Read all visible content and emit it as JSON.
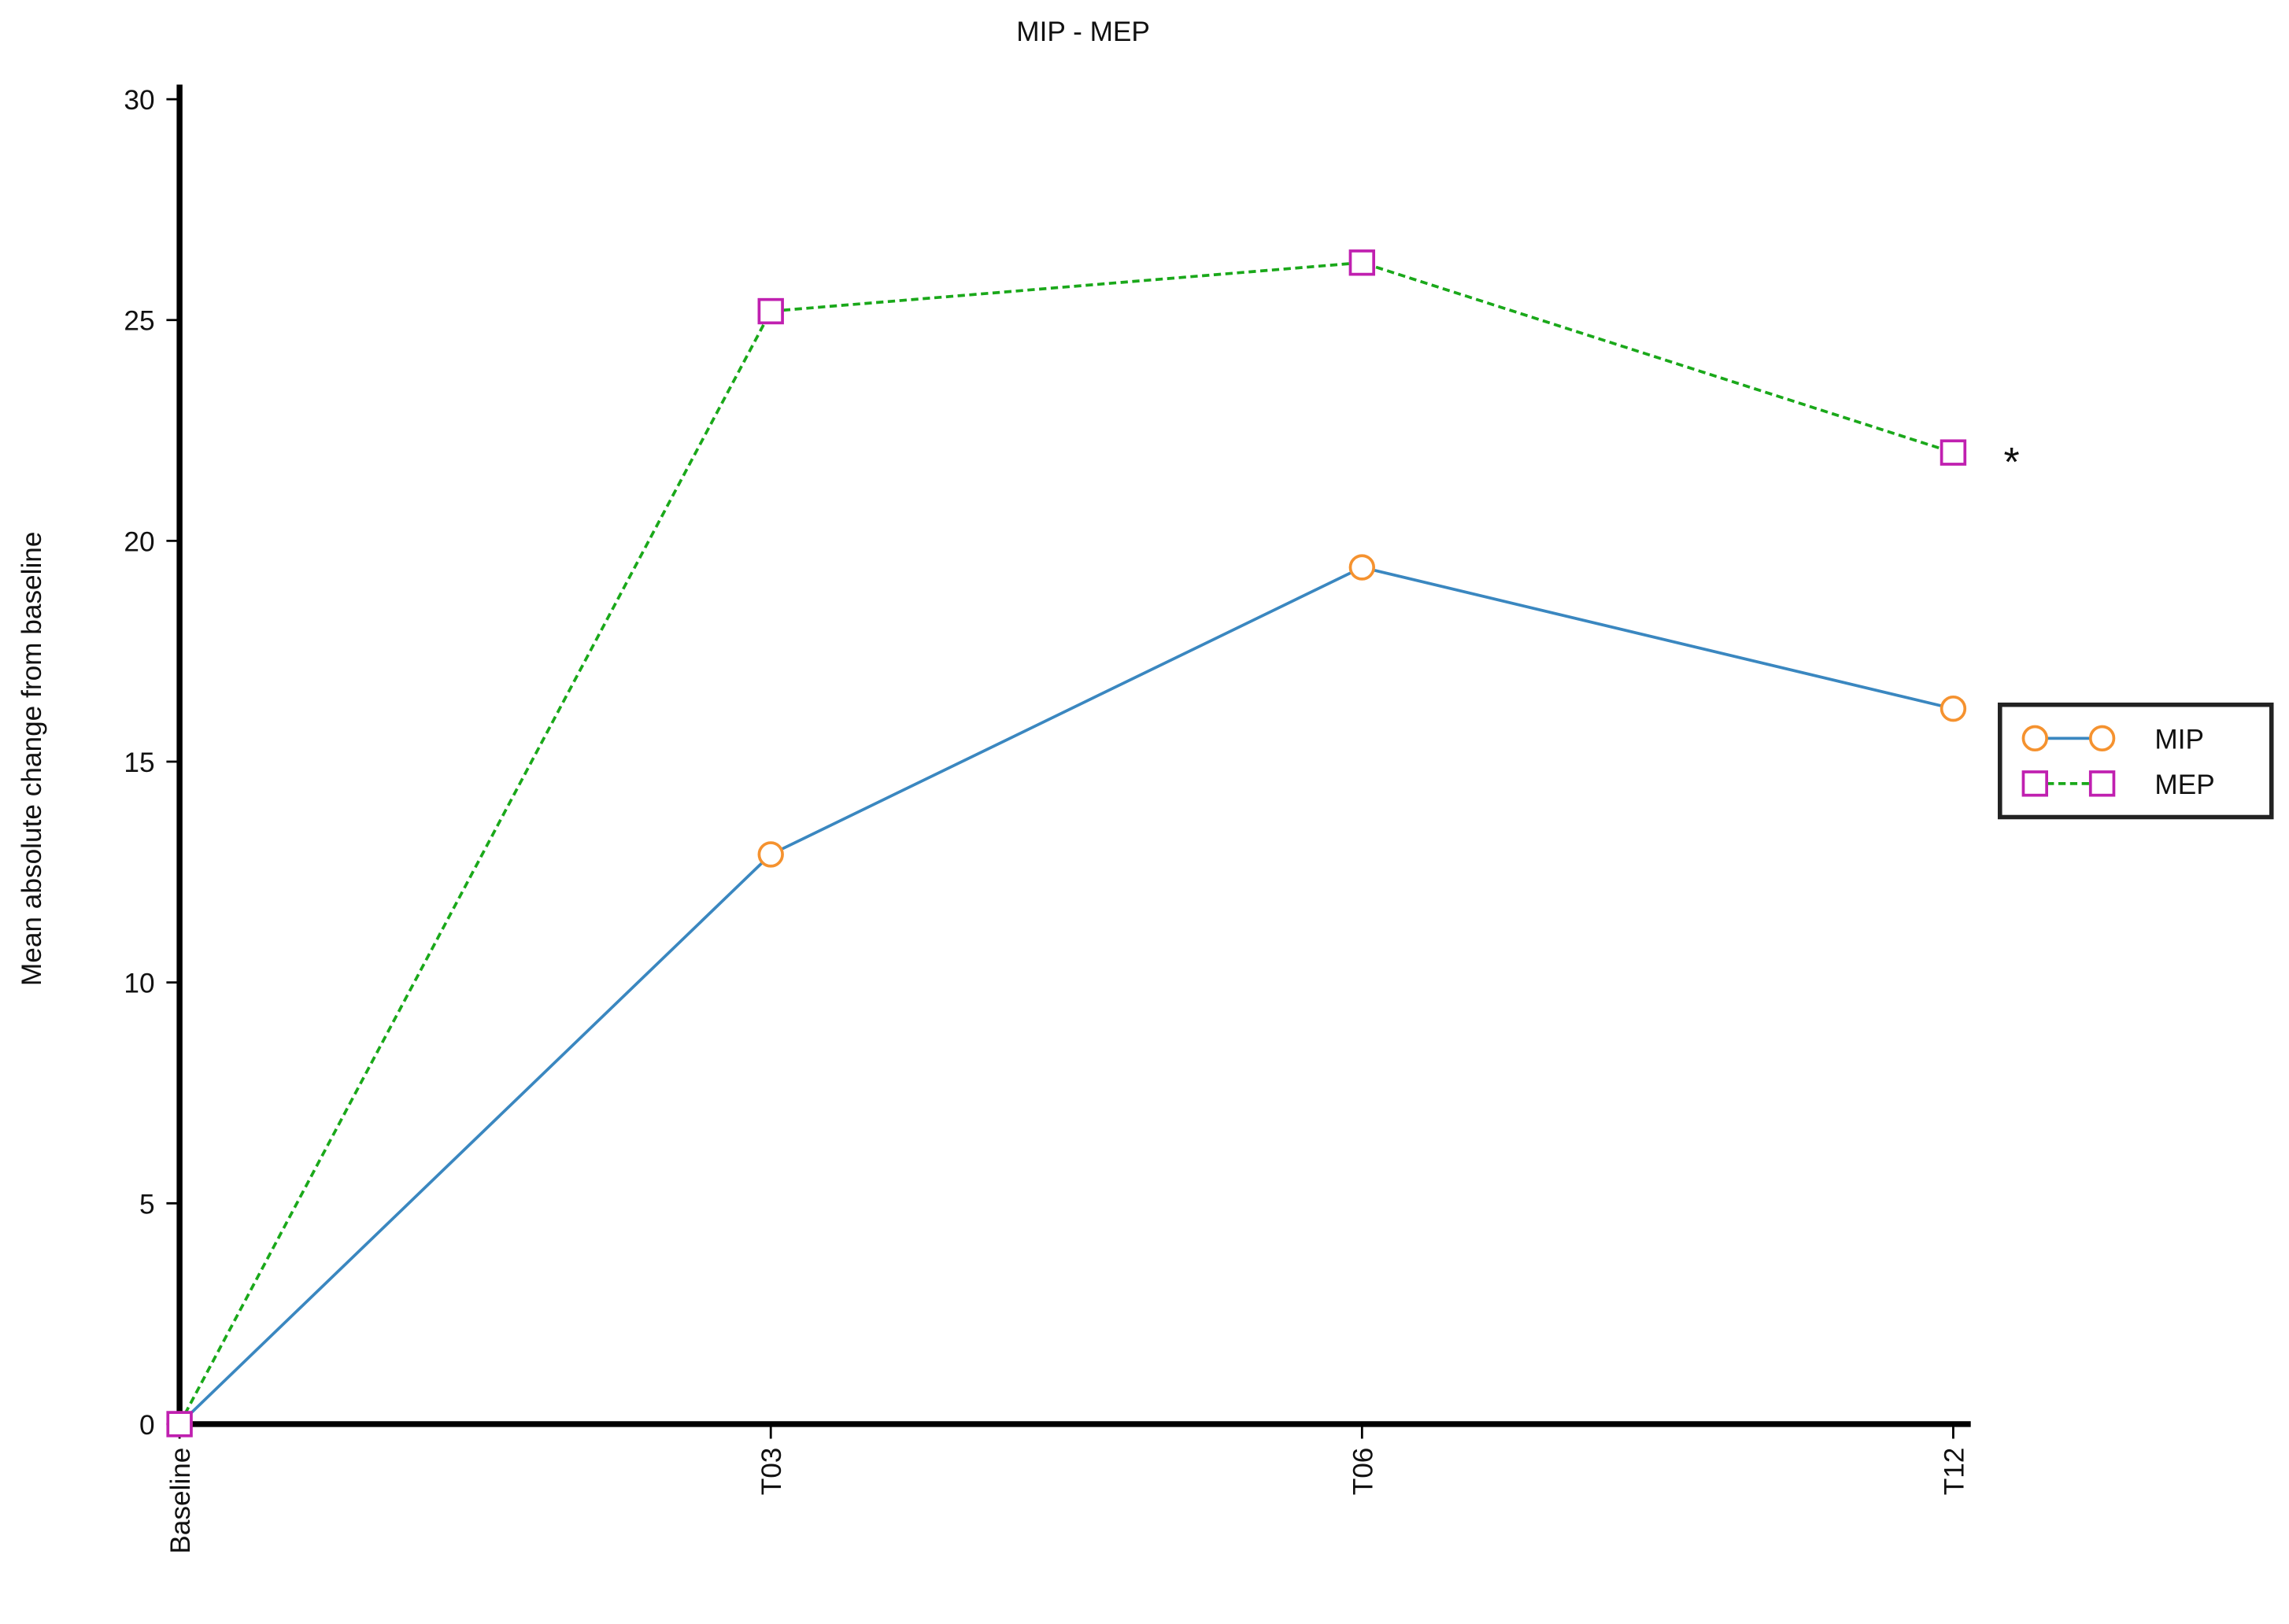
{
  "chart_data": {
    "type": "line",
    "title": "MIP - MEP",
    "y_label": "Mean absolute change from baseline",
    "categories": [
      "Baseline",
      "T03",
      "T06",
      "T12"
    ],
    "series": [
      {
        "name": "MIP",
        "color": "#3a87c0",
        "marker": "circle",
        "marker_color": "#f5922f",
        "dash": "solid",
        "values": [
          0,
          12.9,
          19.4,
          16.2
        ]
      },
      {
        "name": "MEP",
        "color": "#1aa81a",
        "marker": "square",
        "marker_color": "#c020b0",
        "dash": "dashed",
        "values": [
          0,
          25.2,
          26.3,
          22.0
        ]
      }
    ],
    "annotation": "*",
    "ylim": [
      0,
      30
    ],
    "yticks": [
      0,
      5,
      10,
      15,
      20,
      25,
      30
    ],
    "grid": false,
    "legend": "right"
  }
}
